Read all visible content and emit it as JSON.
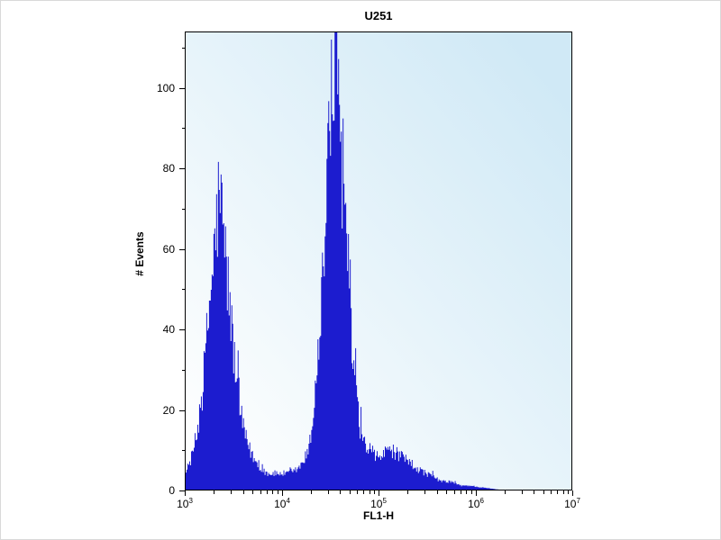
{
  "title": "U251",
  "axes": {
    "x_label": "FL1-H",
    "y_label": "# Events",
    "x_scale": "log10",
    "x_tick_exponents": [
      3,
      4,
      5,
      6,
      7
    ],
    "y_major_ticks": [
      0,
      20,
      40,
      60,
      80,
      100
    ],
    "y_minor_ticks": [
      10,
      30,
      50,
      70,
      90,
      110
    ],
    "y_min": 0,
    "y_max": 114
  },
  "style": {
    "fill_color": "#1c1ccf",
    "bg_bottom_left": "#fdfefe",
    "bg_top_right": "#d0e9f6",
    "frame_color": "#000000",
    "tick_color": "#000000"
  },
  "chart_data": {
    "type": "area",
    "subtype": "flow-cytometry-histogram",
    "title": "U251",
    "xlabel": "FL1-H",
    "ylabel": "# Events",
    "x_scale": "log10",
    "xlim_exp": [
      3,
      7
    ],
    "ylim": [
      0,
      114
    ],
    "grid": false,
    "legend": "none",
    "peaks": [
      {
        "name": "peak-1",
        "center_x": 2300,
        "max_events": 74
      },
      {
        "name": "peak-2",
        "center_x": 36000,
        "max_events": 113
      },
      {
        "name": "minor-bump",
        "center_x": 140000,
        "max_events": 10
      }
    ],
    "noise": {
      "seed": 12345,
      "jitter": 0.4,
      "spike_prob": 0.06,
      "spike_gain": 1.22
    },
    "envelope_log10x_events": [
      [
        3.0,
        4
      ],
      [
        3.06,
        8
      ],
      [
        3.12,
        14
      ],
      [
        3.18,
        26
      ],
      [
        3.24,
        44
      ],
      [
        3.3,
        60
      ],
      [
        3.35,
        74
      ],
      [
        3.4,
        62
      ],
      [
        3.45,
        48
      ],
      [
        3.5,
        34
      ],
      [
        3.56,
        20
      ],
      [
        3.62,
        13
      ],
      [
        3.68,
        9
      ],
      [
        3.75,
        6
      ],
      [
        3.85,
        4
      ],
      [
        4.0,
        4
      ],
      [
        4.1,
        4
      ],
      [
        4.2,
        6
      ],
      [
        4.28,
        10
      ],
      [
        4.34,
        22
      ],
      [
        4.4,
        44
      ],
      [
        4.45,
        66
      ],
      [
        4.5,
        90
      ],
      [
        4.54,
        104
      ],
      [
        4.56,
        113
      ],
      [
        4.58,
        96
      ],
      [
        4.62,
        82
      ],
      [
        4.66,
        62
      ],
      [
        4.7,
        44
      ],
      [
        4.74,
        30
      ],
      [
        4.78,
        20
      ],
      [
        4.83,
        13
      ],
      [
        4.88,
        10
      ],
      [
        4.94,
        8
      ],
      [
        5.0,
        8
      ],
      [
        5.06,
        9
      ],
      [
        5.12,
        10
      ],
      [
        5.18,
        9
      ],
      [
        5.24,
        8
      ],
      [
        5.3,
        7
      ],
      [
        5.36,
        6
      ],
      [
        5.42,
        5
      ],
      [
        5.5,
        4
      ],
      [
        5.58,
        3
      ],
      [
        5.66,
        2
      ],
      [
        5.75,
        2
      ],
      [
        5.85,
        1
      ],
      [
        5.95,
        1
      ],
      [
        6.05,
        0.6
      ],
      [
        6.15,
        0.3
      ],
      [
        6.25,
        0
      ],
      [
        7.0,
        0
      ]
    ]
  }
}
